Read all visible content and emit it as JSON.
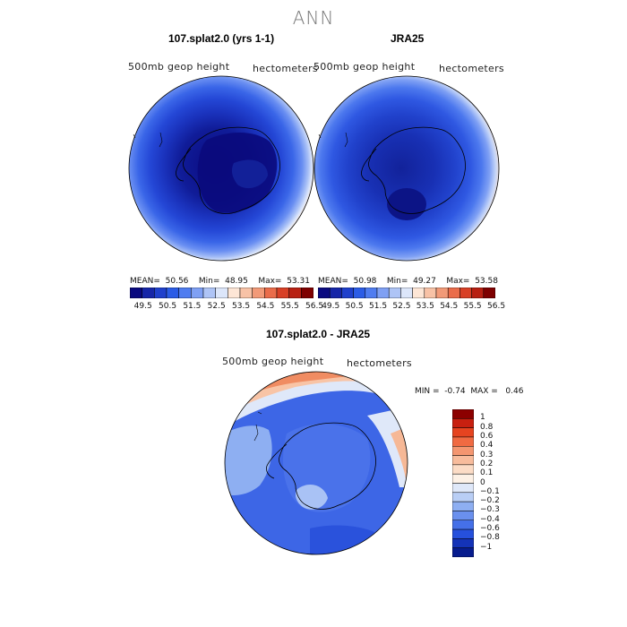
{
  "title": "ANN",
  "panels": [
    {
      "title": "107.splat2.0 (yrs 1-1)",
      "variable": "500mb geop height",
      "units": "hectometers",
      "stats": {
        "mean_label": "MEAN=",
        "mean": "50.56",
        "min_label": "Min=",
        "min": "48.95",
        "max_label": "Max=",
        "max": "53.31"
      }
    },
    {
      "title": "JRA25",
      "variable": "500mb geop height",
      "units": "hectometers",
      "stats": {
        "mean_label": "MEAN=",
        "mean": "50.98",
        "min_label": "Min=",
        "min": "49.27",
        "max_label": "Max=",
        "max": "53.58"
      }
    }
  ],
  "abs_colorbar": {
    "labels": [
      "49.5",
      "50.5",
      "51.5",
      "52.5",
      "53.5",
      "54.5",
      "55.5",
      "56.5"
    ],
    "colors": [
      "#0a0a80",
      "#1626a8",
      "#1f40cc",
      "#2b5ce6",
      "#4f7cf0",
      "#7fa0f4",
      "#aec4f6",
      "#dce6fa",
      "#fde6d6",
      "#f8c2a6",
      "#f29a78",
      "#ea6c4a",
      "#d84026",
      "#b82012",
      "#7e0000"
    ]
  },
  "diff_panel": {
    "title": "107.splat2.0 - JRA25",
    "variable": "500mb geop height",
    "units": "hectometers",
    "stats": {
      "min_label": "MIN =",
      "min": "-0.74",
      "max_label": "MAX =",
      "max": "0.46"
    }
  },
  "diff_colorbar": {
    "labels": [
      "1",
      "0.8",
      "0.6",
      "0.4",
      "0.3",
      "0.2",
      "0.1",
      "0",
      "−0.1",
      "−0.2",
      "−0.3",
      "−0.4",
      "−0.6",
      "−0.8",
      "−1"
    ],
    "colors": [
      "#8c0000",
      "#c82010",
      "#e64420",
      "#f06a42",
      "#f49670",
      "#f8bc9c",
      "#fcdcc6",
      "#fdf1e6",
      "#dfe8f9",
      "#b9cef5",
      "#8eaff2",
      "#6a90ee",
      "#4570e8",
      "#2650dc",
      "#1433b8",
      "#071c8e"
    ]
  },
  "colors": {
    "coast": "#000000",
    "frame": "#000000"
  }
}
